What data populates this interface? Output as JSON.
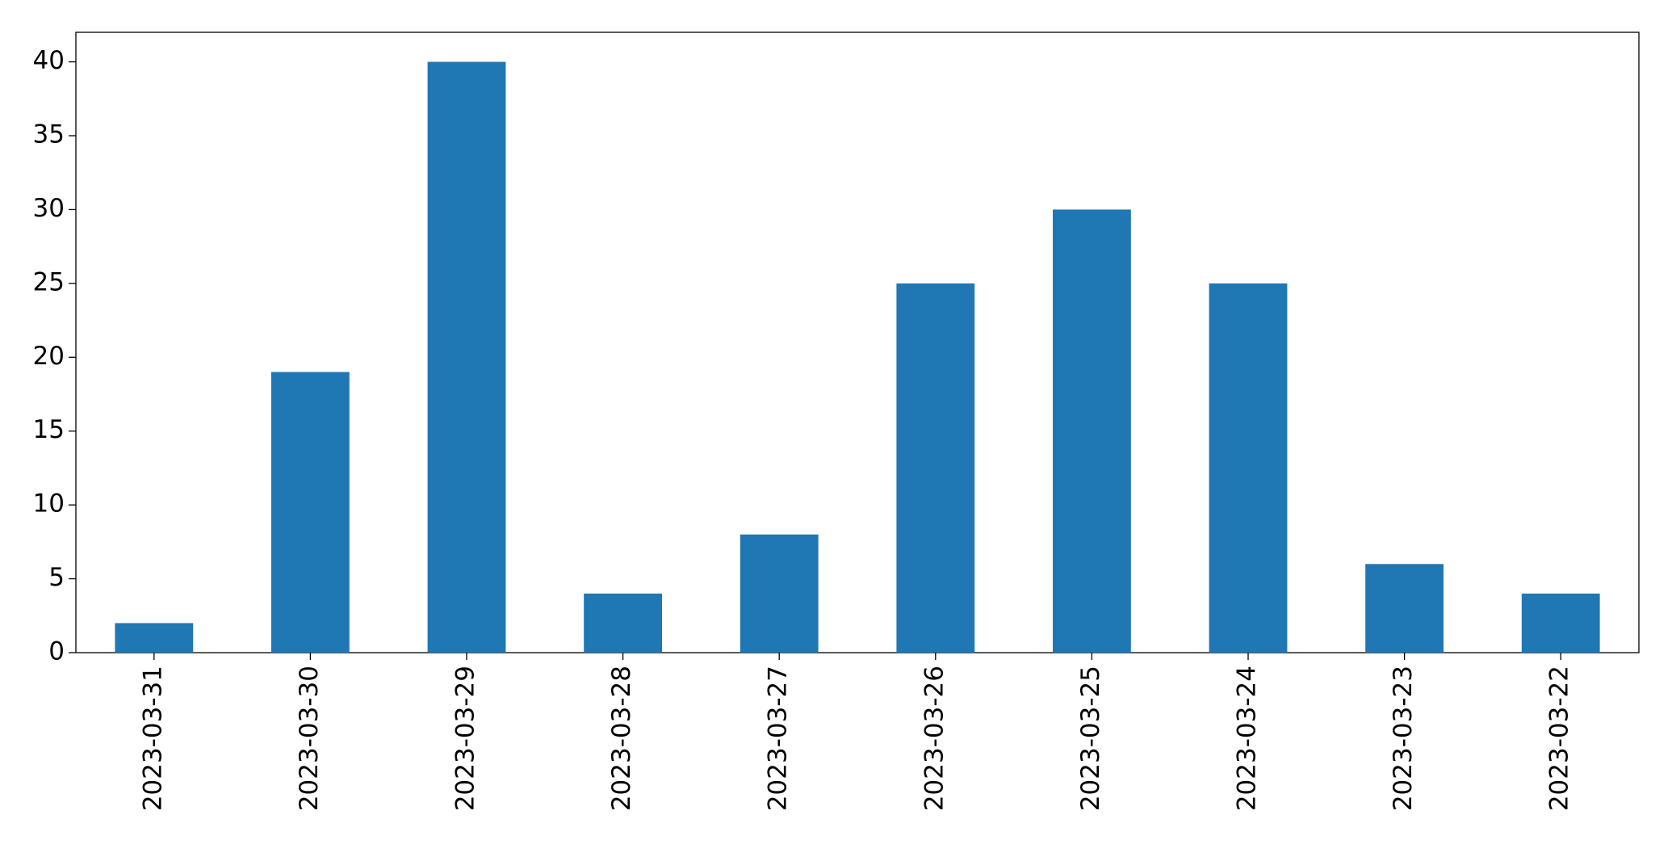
{
  "chart_data": {
    "type": "bar",
    "categories": [
      "2023-03-31",
      "2023-03-30",
      "2023-03-29",
      "2023-03-28",
      "2023-03-27",
      "2023-03-26",
      "2023-03-25",
      "2023-03-24",
      "2023-03-23",
      "2023-03-22"
    ],
    "values": [
      2,
      19,
      40,
      4,
      8,
      25,
      30,
      25,
      6,
      4
    ],
    "color": "#1f77b4",
    "ylim": [
      0,
      42
    ],
    "yticks": [
      0,
      5,
      10,
      15,
      20,
      25,
      30,
      35,
      40
    ],
    "grid": false
  }
}
